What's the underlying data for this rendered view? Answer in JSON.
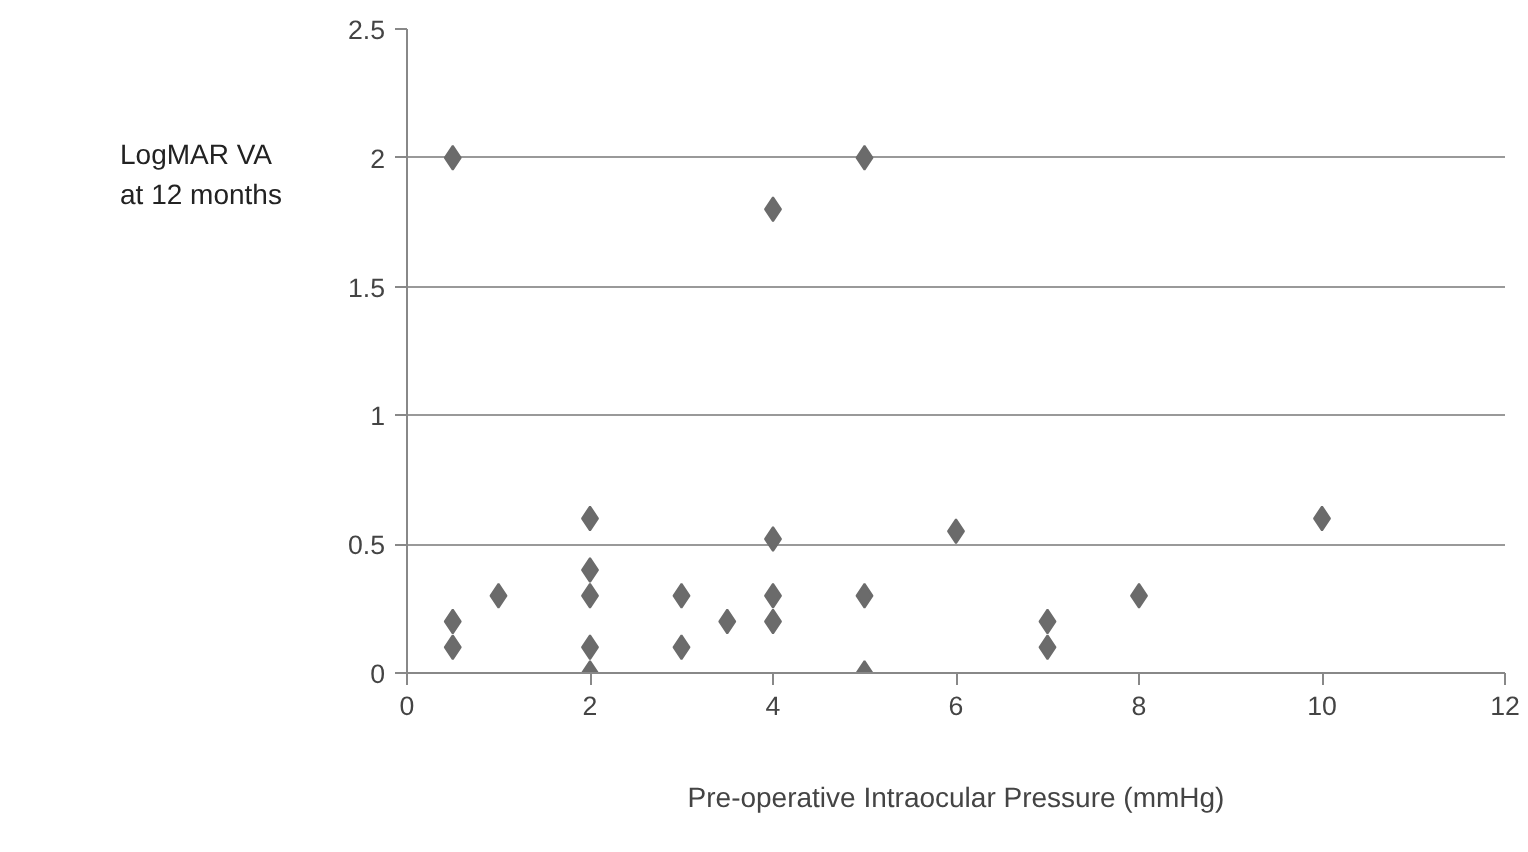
{
  "chart_data": {
    "type": "scatter",
    "xlabel": "Pre-operative Intraocular Pressure (mmHg)",
    "ylabel": "LogMAR VA\nat 12 months",
    "x": [
      0.5,
      0.5,
      0.5,
      1,
      2,
      2,
      2,
      2,
      2,
      3,
      3,
      3.5,
      4,
      4,
      4,
      4,
      5,
      5,
      5,
      6,
      7,
      7,
      8,
      10
    ],
    "series": [
      {
        "color": "#6b6b6b",
        "values": [
          2.0,
          0.2,
          0.1,
          0.3,
          0.6,
          0.4,
          0.3,
          0.1,
          0.0,
          0.3,
          0.1,
          0.2,
          1.8,
          0.52,
          0.3,
          0.2,
          2.0,
          0.3,
          0.0,
          0.55,
          0.2,
          0.1,
          0.3,
          0.6
        ]
      }
    ],
    "xlim": [
      0,
      12
    ],
    "xticks": [
      0,
      2,
      4,
      6,
      8,
      10,
      12
    ],
    "ylim": [
      0,
      2.5
    ],
    "yticks": [
      0,
      {
        "value": 0.5,
        "label": "0.5"
      },
      1,
      {
        "value": 1.5,
        "label": "1.5"
      },
      2,
      {
        "value": 2.5,
        "label": "2.5"
      }
    ],
    "grid": "y",
    "marker": "diamond"
  }
}
